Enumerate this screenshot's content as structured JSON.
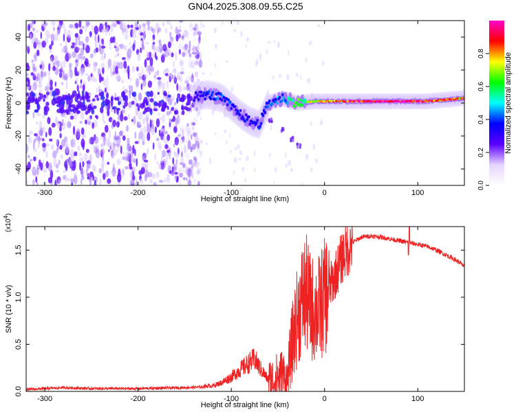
{
  "title": "GN04.2025.308.09.55.C25",
  "chart_data": [
    {
      "type": "heatmap",
      "name": "spectrogram",
      "xlabel": "Height of straight line (km)",
      "ylabel": "Frequency (Hz)",
      "xlim": [
        -320,
        150
      ],
      "ylim": [
        -50,
        50
      ],
      "xticks": [
        -300,
        -200,
        -100,
        0,
        100
      ],
      "yticks": [
        -40,
        -20,
        0,
        20,
        40
      ],
      "colorbar": {
        "label": "Normalized spectral amplitude",
        "range": [
          0,
          1
        ],
        "ticks": [
          "0.0",
          "0.2",
          "0.4",
          "0.6",
          "0.8"
        ],
        "tick_values": [
          0.0,
          0.2,
          0.4,
          0.6,
          0.8
        ],
        "colormap": [
          "#ffffff",
          "#e6d4ff",
          "#5a00ff",
          "#0000ff",
          "#00ffff",
          "#00ff00",
          "#ffff00",
          "#ff0000",
          "#ff00cc"
        ]
      },
      "features": {
        "noise_region_x": [
          -320,
          -140
        ],
        "signal_track": [
          {
            "x": -140,
            "y": 4,
            "amp": 0.3
          },
          {
            "x": -125,
            "y": 5,
            "amp": 0.38
          },
          {
            "x": -110,
            "y": 3,
            "amp": 0.4
          },
          {
            "x": -100,
            "y": -2,
            "amp": 0.38
          },
          {
            "x": -90,
            "y": -7,
            "amp": 0.35
          },
          {
            "x": -80,
            "y": -11,
            "amp": 0.35
          },
          {
            "x": -70,
            "y": -13,
            "amp": 0.4
          },
          {
            "x": -60,
            "y": 0,
            "amp": 0.4
          },
          {
            "x": -45,
            "y": 3,
            "amp": 0.45
          },
          {
            "x": -30,
            "y": 0,
            "amp": 0.62
          },
          {
            "x": -10,
            "y": 1,
            "amp": 0.7
          },
          {
            "x": 10,
            "y": 1,
            "amp": 0.85
          },
          {
            "x": 60,
            "y": 1,
            "amp": 0.98
          },
          {
            "x": 110,
            "y": 1,
            "amp": 0.9
          },
          {
            "x": 150,
            "y": 3,
            "amp": 0.8
          }
        ],
        "branch": [
          {
            "x": -58,
            "y": -10
          },
          {
            "x": -45,
            "y": -16
          },
          {
            "x": -35,
            "y": -22
          },
          {
            "x": -28,
            "y": -26
          }
        ]
      }
    },
    {
      "type": "line",
      "name": "snr",
      "xlabel": "Height of straight line (km)",
      "ylabel": "SNR (10 * v/v)",
      "multiplier": "(x10",
      "multiplier_exp": "4",
      "multiplier_close": ")",
      "xlim": [
        -320,
        150
      ],
      "ylim": [
        0,
        1.75
      ],
      "xticks": [
        -300,
        -200,
        -100,
        0,
        100
      ],
      "yticks": [
        0.0,
        0.5,
        1.0,
        1.5
      ],
      "ytick_labels": [
        "0.0",
        "0.5",
        "1.0",
        "1.5"
      ],
      "color": "#ee2222",
      "series": [
        {
          "name": "SNR",
          "x": [
            -320,
            -300,
            -280,
            -250,
            -200,
            -150,
            -120,
            -110,
            -100,
            -90,
            -80,
            -75,
            -70,
            -60,
            -55,
            -50,
            -45,
            -40,
            -35,
            -30,
            -25,
            -20,
            -15,
            -10,
            -5,
            0,
            10,
            20,
            30,
            40,
            50,
            60,
            70,
            80,
            90,
            100,
            110,
            120,
            130,
            140,
            150
          ],
          "y": [
            0.02,
            0.03,
            0.04,
            0.03,
            0.03,
            0.04,
            0.05,
            0.08,
            0.13,
            0.2,
            0.26,
            0.29,
            0.22,
            0.1,
            0.12,
            0.15,
            0.18,
            0.1,
            0.5,
            0.75,
            0.95,
            1.05,
            0.9,
            0.85,
            0.9,
            1.0,
            1.2,
            1.45,
            1.58,
            1.64,
            1.65,
            1.64,
            1.62,
            1.6,
            1.58,
            1.56,
            1.54,
            1.5,
            1.45,
            1.4,
            1.33
          ]
        }
      ]
    }
  ]
}
